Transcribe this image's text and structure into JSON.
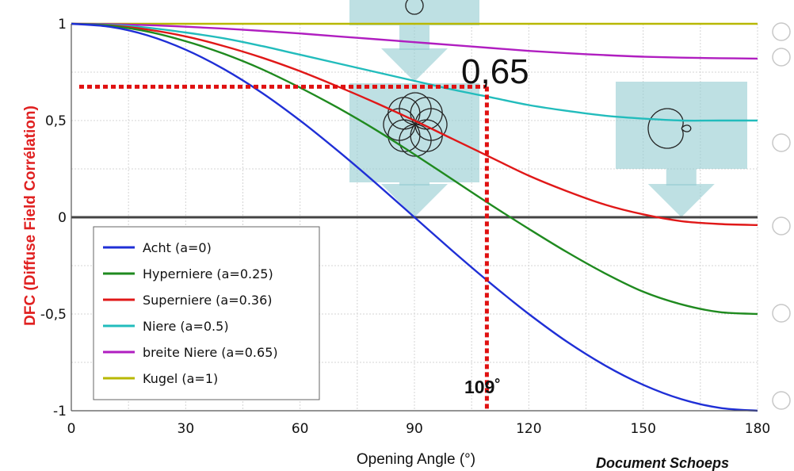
{
  "chart_data": {
    "type": "line",
    "title": "",
    "xlabel": "Opening Angle (°)",
    "ylabel": "DFC (Diffuse Field Corrélation)",
    "xlim": [
      0,
      180
    ],
    "ylim": [
      -1,
      1
    ],
    "xticks": [
      "0",
      "30",
      "60",
      "90",
      "120",
      "150",
      "180"
    ],
    "yticks": [
      "-1",
      "-0,5",
      "0",
      "0,5",
      "1"
    ],
    "grid": true,
    "legend_position": "bottom-left",
    "x": [
      0,
      10,
      20,
      30,
      40,
      50,
      60,
      70,
      80,
      90,
      100,
      110,
      120,
      130,
      140,
      150,
      160,
      170,
      180
    ],
    "series": [
      {
        "name": "Acht (a=0)",
        "color": "#1f2fd6",
        "values": [
          1.0,
          0.985,
          0.94,
          0.866,
          0.766,
          0.643,
          0.5,
          0.342,
          0.174,
          0.0,
          -0.174,
          -0.342,
          -0.5,
          -0.643,
          -0.766,
          -0.866,
          -0.94,
          -0.985,
          -1.0
        ]
      },
      {
        "name": "Hyperniere (a=0.25)",
        "color": "#1f8a1f",
        "values": [
          1.0,
          0.99,
          0.96,
          0.91,
          0.845,
          0.765,
          0.67,
          0.565,
          0.45,
          0.325,
          0.195,
          0.065,
          -0.06,
          -0.18,
          -0.29,
          -0.385,
          -0.45,
          -0.49,
          -0.5
        ]
      },
      {
        "name": "Superniere (a=0.36)",
        "color": "#e01818",
        "values": [
          1.0,
          0.992,
          0.97,
          0.935,
          0.885,
          0.825,
          0.755,
          0.675,
          0.59,
          0.5,
          0.405,
          0.31,
          0.215,
          0.135,
          0.065,
          0.015,
          -0.02,
          -0.035,
          -0.04
        ]
      },
      {
        "name": "Niere (a=0.5)",
        "color": "#22bcbc",
        "values": [
          1.0,
          0.995,
          0.98,
          0.955,
          0.925,
          0.885,
          0.84,
          0.795,
          0.75,
          0.705,
          0.66,
          0.62,
          0.58,
          0.55,
          0.525,
          0.51,
          0.5,
          0.5,
          0.5
        ]
      },
      {
        "name": "breite Niere (a=0.65)",
        "color": "#b01ec0",
        "values": [
          1.0,
          0.998,
          0.993,
          0.985,
          0.975,
          0.963,
          0.95,
          0.935,
          0.92,
          0.905,
          0.89,
          0.875,
          0.86,
          0.848,
          0.838,
          0.83,
          0.825,
          0.822,
          0.82
        ]
      },
      {
        "name": "Kugel (a=1)",
        "color": "#b8b800",
        "values": [
          1,
          1,
          1,
          1,
          1,
          1,
          1,
          1,
          1,
          1,
          1,
          1,
          1,
          1,
          1,
          1,
          1,
          1,
          1
        ]
      }
    ],
    "annotations": {
      "value_label": "0,65",
      "angle_label": "109˚",
      "marker_x": 109,
      "marker_y": 0.65,
      "overlay_arrow_x": [
        90,
        160
      ]
    }
  },
  "credit": "Document Schoeps"
}
